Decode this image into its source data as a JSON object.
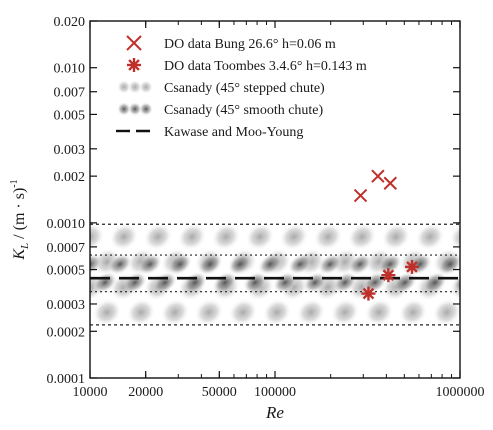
{
  "chart_data": {
    "type": "scatter",
    "xlabel": "Re",
    "ylabel": "K_L / (m·s)^-1",
    "xscale": "log",
    "yscale": "log",
    "xlim": [
      10000,
      1000000
    ],
    "ylim": [
      0.0001,
      0.02
    ],
    "grid": false,
    "legend_position": "top-right",
    "x_ticks": [
      {
        "value": 10000,
        "label": "10000"
      },
      {
        "value": 20000,
        "label": "20000"
      },
      {
        "value": 50000,
        "label": "50000"
      },
      {
        "value": 100000,
        "label": "100000"
      },
      {
        "value": 1000000,
        "label": "1000000"
      }
    ],
    "y_ticks": [
      {
        "value": 0.0001,
        "label": "0.0001"
      },
      {
        "value": 0.0002,
        "label": "0.0002"
      },
      {
        "value": 0.0003,
        "label": "0.0003"
      },
      {
        "value": 0.0005,
        "label": "0.0005"
      },
      {
        "value": 0.0007,
        "label": "0.0007"
      },
      {
        "value": 0.001,
        "label": "0.0010"
      },
      {
        "value": 0.002,
        "label": "0.002"
      },
      {
        "value": 0.003,
        "label": "0.003"
      },
      {
        "value": 0.005,
        "label": "0.005"
      },
      {
        "value": 0.007,
        "label": "0.007"
      },
      {
        "value": 0.01,
        "label": "0.010"
      },
      {
        "value": 0.02,
        "label": "0.020"
      }
    ],
    "series": [
      {
        "name": "DO data Bung 26.6° h=0.06 m",
        "marker": "x",
        "color": "#c0302b",
        "points": [
          [
            290000,
            0.0015
          ],
          [
            360000,
            0.002
          ],
          [
            420000,
            0.0018
          ]
        ]
      },
      {
        "name": "DO data Toombes 3.4.6° h=0.143 m",
        "marker": "asterisk",
        "color": "#c0302b",
        "points": [
          [
            320000,
            0.00035
          ],
          [
            410000,
            0.00046
          ],
          [
            550000,
            0.00052
          ]
        ]
      },
      {
        "name": "Csanady (45° stepped chute)",
        "kind": "band",
        "color": "#9a9a9a",
        "y_range": [
          0.00022,
          0.00098
        ]
      },
      {
        "name": "Csanady (45° smooth chute)",
        "kind": "band",
        "color": "#5a5a5a",
        "y_range": [
          0.00036,
          0.00062
        ]
      },
      {
        "name": "Kawase and Moo-Young",
        "kind": "constant",
        "color": "#111111",
        "y": 0.00044
      }
    ]
  }
}
